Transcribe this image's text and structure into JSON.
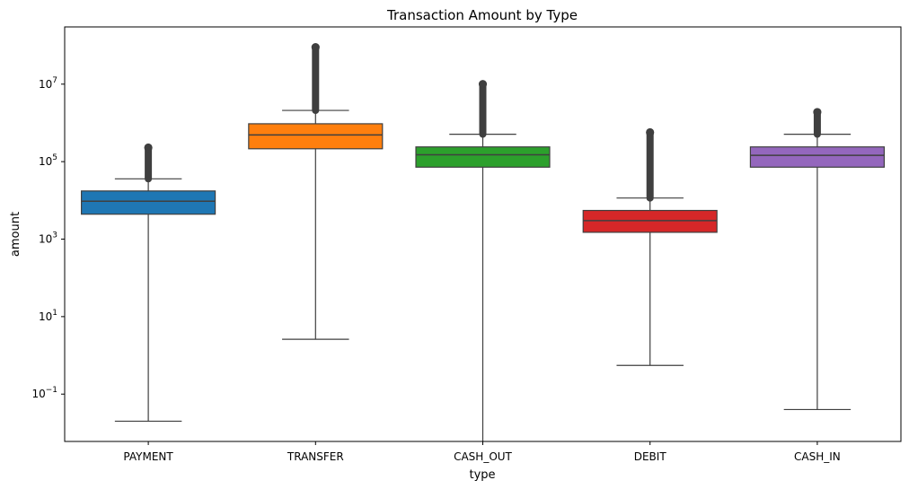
{
  "chart_data": {
    "type": "box",
    "title": "Transaction Amount by Type",
    "xlabel": "type",
    "ylabel": "amount",
    "yscale": "log",
    "ylim": [
      0.006,
      300000000
    ],
    "yticks": [
      {
        "value": 0.1,
        "mantissa": "10",
        "exp": "−1"
      },
      {
        "value": 10,
        "mantissa": "10",
        "exp": "1"
      },
      {
        "value": 1000,
        "mantissa": "10",
        "exp": "3"
      },
      {
        "value": 100000,
        "mantissa": "10",
        "exp": "5"
      },
      {
        "value": 10000000,
        "mantissa": "10",
        "exp": "7"
      }
    ],
    "grid": false,
    "categories": [
      "PAYMENT",
      "TRANSFER",
      "CASH_OUT",
      "DEBIT",
      "CASH_IN"
    ],
    "boxes": [
      {
        "category": "PAYMENT",
        "color": "#1f77b4",
        "min": 0.02,
        "q1": 4400,
        "median": 9500,
        "q3": 17500,
        "whisker_high": 36000,
        "outlier_low": 36000,
        "outlier_high": 230000
      },
      {
        "category": "TRANSFER",
        "color": "#ff7f0e",
        "min": 2.6,
        "q1": 215000,
        "median": 490000,
        "q3": 950000,
        "whisker_high": 2100000,
        "outlier_low": 2100000,
        "outlier_high": 90000000
      },
      {
        "category": "CASH_OUT",
        "color": "#2ca02c",
        "min": 0.006,
        "q1": 72000,
        "median": 150000,
        "q3": 240000,
        "whisker_high": 510000,
        "outlier_low": 510000,
        "outlier_high": 10000000
      },
      {
        "category": "DEBIT",
        "color": "#d62728",
        "min": 0.55,
        "q1": 1500,
        "median": 3000,
        "q3": 5500,
        "whisker_high": 11500,
        "outlier_low": 11500,
        "outlier_high": 570000
      },
      {
        "category": "CASH_IN",
        "color": "#9467bd",
        "min": 0.04,
        "q1": 72000,
        "median": 145000,
        "q3": 240000,
        "whisker_high": 510000,
        "outlier_low": 510000,
        "outlier_high": 1900000
      }
    ]
  }
}
